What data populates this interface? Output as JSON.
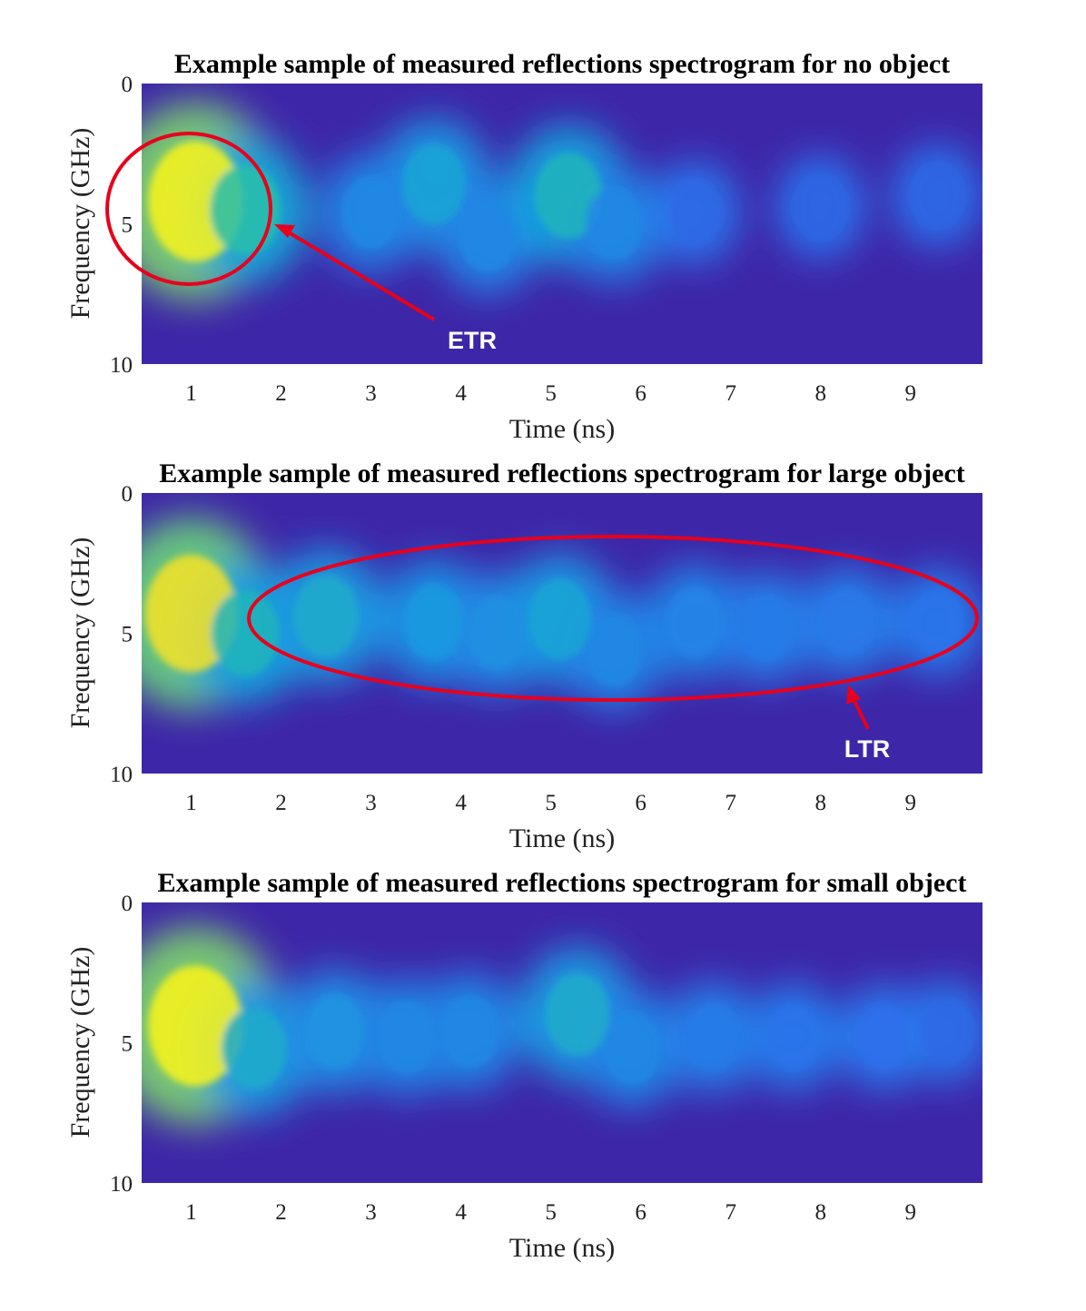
{
  "chart_data": [
    {
      "type": "heatmap",
      "title": "Example sample of measured reflections spectrogram for no object",
      "xlabel": "Time (ns)",
      "ylabel": "Frequency (GHz)",
      "xlim": [
        0.45,
        9.8
      ],
      "ylim": [
        0,
        10
      ],
      "y_reversed": true,
      "xticks": [
        "1",
        "2",
        "3",
        "4",
        "5",
        "6",
        "7",
        "8",
        "9"
      ],
      "yticks": [
        "0",
        "5",
        "10"
      ],
      "colormap": "parula",
      "grid": false,
      "blobs": [
        {
          "t": 1.05,
          "f": 4.2,
          "intensity": 1.0
        },
        {
          "t": 1.6,
          "f": 4.5,
          "intensity": 0.55
        },
        {
          "t": 3.7,
          "f": 3.6,
          "intensity": 0.42
        },
        {
          "t": 3.0,
          "f": 4.6,
          "intensity": 0.3
        },
        {
          "t": 4.3,
          "f": 5.4,
          "intensity": 0.3
        },
        {
          "t": 5.2,
          "f": 4.0,
          "intensity": 0.5
        },
        {
          "t": 5.7,
          "f": 5.0,
          "intensity": 0.3
        },
        {
          "t": 6.6,
          "f": 4.6,
          "intensity": 0.18
        },
        {
          "t": 8.0,
          "f": 4.4,
          "intensity": 0.17
        },
        {
          "t": 9.3,
          "f": 4.0,
          "intensity": 0.17
        }
      ],
      "annotation": {
        "label": "ETR",
        "shape": "circle"
      }
    },
    {
      "type": "heatmap",
      "title": "Example sample of measured reflections spectrogram for large object",
      "xlabel": "Time (ns)",
      "ylabel": "Frequency (GHz)",
      "xlim": [
        0.45,
        9.8
      ],
      "ylim": [
        0,
        10
      ],
      "y_reversed": true,
      "xticks": [
        "1",
        "2",
        "3",
        "4",
        "5",
        "6",
        "7",
        "8",
        "9"
      ],
      "yticks": [
        "0",
        "5",
        "10"
      ],
      "colormap": "parula",
      "grid": false,
      "blobs": [
        {
          "t": 1.0,
          "f": 4.3,
          "intensity": 0.95
        },
        {
          "t": 1.6,
          "f": 5.0,
          "intensity": 0.5
        },
        {
          "t": 2.5,
          "f": 4.4,
          "intensity": 0.45
        },
        {
          "t": 3.7,
          "f": 4.6,
          "intensity": 0.37
        },
        {
          "t": 4.4,
          "f": 5.0,
          "intensity": 0.33
        },
        {
          "t": 5.1,
          "f": 4.5,
          "intensity": 0.42
        },
        {
          "t": 5.7,
          "f": 5.6,
          "intensity": 0.3
        },
        {
          "t": 6.6,
          "f": 4.6,
          "intensity": 0.28
        },
        {
          "t": 7.4,
          "f": 4.8,
          "intensity": 0.25
        },
        {
          "t": 8.3,
          "f": 4.6,
          "intensity": 0.24
        },
        {
          "t": 9.3,
          "f": 4.6,
          "intensity": 0.22
        }
      ],
      "annotation": {
        "label": "LTR",
        "shape": "ellipse"
      }
    },
    {
      "type": "heatmap",
      "title": "Example sample of measured reflections spectrogram for small object",
      "xlabel": "Time (ns)",
      "ylabel": "Frequency (GHz)",
      "xlim": [
        0.45,
        9.8
      ],
      "ylim": [
        0,
        10
      ],
      "y_reversed": true,
      "xticks": [
        "1",
        "2",
        "3",
        "4",
        "5",
        "6",
        "7",
        "8",
        "9"
      ],
      "yticks": [
        "0",
        "5",
        "10"
      ],
      "colormap": "parula",
      "grid": false,
      "blobs": [
        {
          "t": 1.05,
          "f": 4.4,
          "intensity": 1.0
        },
        {
          "t": 1.7,
          "f": 5.2,
          "intensity": 0.45
        },
        {
          "t": 2.6,
          "f": 4.6,
          "intensity": 0.35
        },
        {
          "t": 3.4,
          "f": 4.8,
          "intensity": 0.3
        },
        {
          "t": 4.1,
          "f": 4.6,
          "intensity": 0.3
        },
        {
          "t": 5.3,
          "f": 4.0,
          "intensity": 0.45
        },
        {
          "t": 5.9,
          "f": 5.2,
          "intensity": 0.3
        },
        {
          "t": 6.8,
          "f": 4.8,
          "intensity": 0.25
        },
        {
          "t": 7.7,
          "f": 4.8,
          "intensity": 0.22
        },
        {
          "t": 8.7,
          "f": 4.8,
          "intensity": 0.2
        },
        {
          "t": 9.4,
          "f": 4.6,
          "intensity": 0.18
        }
      ]
    }
  ]
}
